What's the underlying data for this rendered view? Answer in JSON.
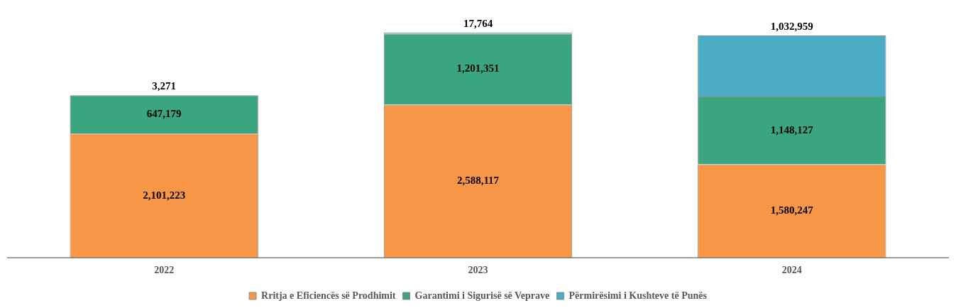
{
  "chart_data": {
    "type": "bar",
    "stacked": true,
    "categories": [
      "2022",
      "2023",
      "2024"
    ],
    "series": [
      {
        "name": "Rritja e Eficiencës së Prodhimit",
        "color": "#f79646",
        "values": [
          2101223,
          2588117,
          1580247
        ],
        "value_labels": [
          "2,101,223",
          "2,588,117",
          "1,580,247"
        ]
      },
      {
        "name": "Garantimi i Sigurisë së Veprave",
        "color": "#3aa57f",
        "values": [
          647179,
          1201351,
          1148127
        ],
        "value_labels": [
          "647,179",
          "1,201,351",
          "1,148,127"
        ]
      },
      {
        "name": "Përmirësimi i Kushteve të Punës",
        "color": "#4bacc6",
        "values": [
          3271,
          17764,
          1032959
        ],
        "value_labels": [
          "3,271",
          "17,764",
          "1,032,959"
        ]
      }
    ],
    "grid": false,
    "legend": "bottom",
    "tick_labels": "x"
  }
}
